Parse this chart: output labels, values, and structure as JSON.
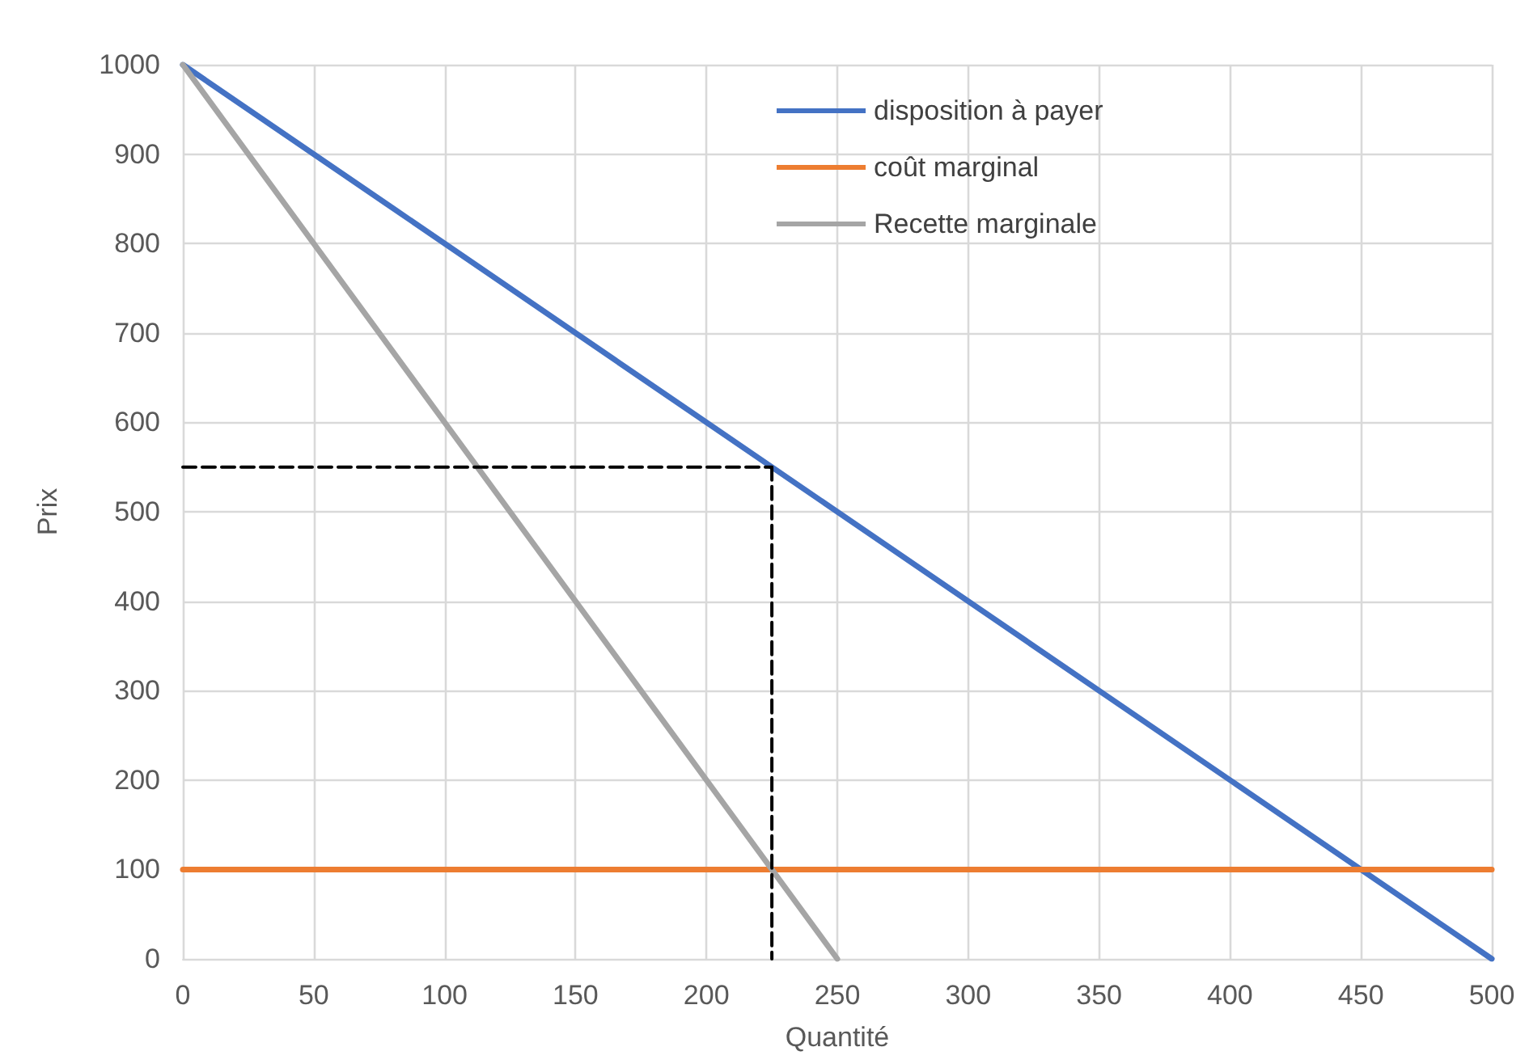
{
  "chart_data": {
    "type": "line",
    "xlabel": "Quantité",
    "ylabel": "Prix",
    "xlim": [
      0,
      500
    ],
    "ylim": [
      0,
      1000
    ],
    "xticks": [
      0,
      50,
      100,
      150,
      200,
      250,
      300,
      350,
      400,
      450,
      500
    ],
    "yticks": [
      0,
      100,
      200,
      300,
      400,
      500,
      600,
      700,
      800,
      900,
      1000
    ],
    "grid": true,
    "legend": "top right",
    "marker": "none",
    "line_style": "solid",
    "series": [
      {
        "name": "disposition à payer",
        "color": "#4472c4",
        "x": [
          0,
          500
        ],
        "values": [
          1000,
          0
        ]
      },
      {
        "name": "coût marginal",
        "color": "#ed7d31",
        "x": [
          0,
          500
        ],
        "values": [
          100,
          100
        ]
      },
      {
        "name": "Recette marginale",
        "color": "#a5a5a5",
        "x": [
          0,
          250
        ],
        "values": [
          1000,
          0
        ]
      },
      {
        "color": "#000000",
        "x": [
          0,
          225
        ],
        "values": [
          550,
          550
        ],
        "line_style": "dashed"
      },
      {
        "color": "#000000",
        "x": [
          225,
          225
        ],
        "values": [
          550,
          0
        ],
        "line_style": "dashed"
      }
    ]
  }
}
